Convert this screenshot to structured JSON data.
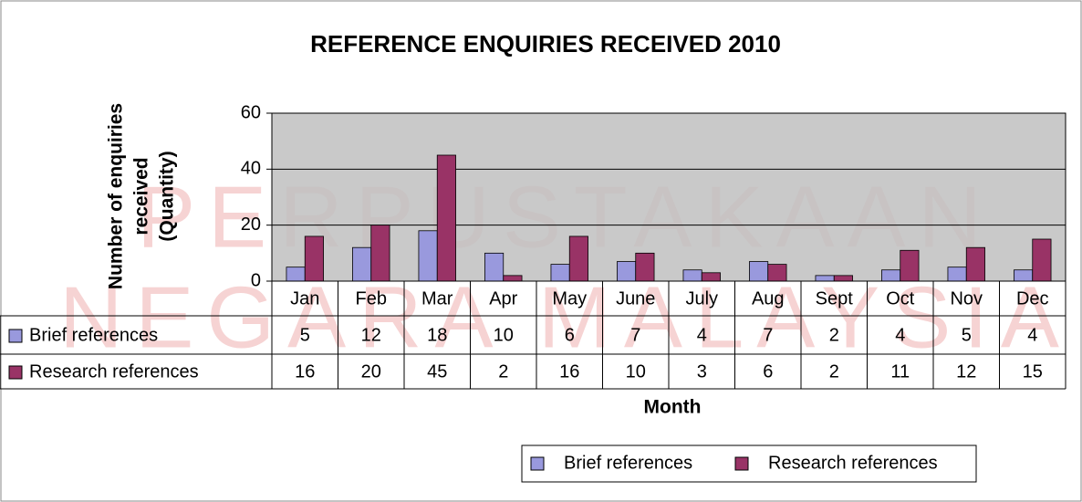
{
  "chart_data": {
    "type": "bar",
    "title": "REFERENCE ENQUIRIES RECEIVED 2010",
    "ylabel": [
      "Number of enquiries",
      "received",
      "(Quantity)"
    ],
    "xlabel": "Month",
    "watermark": [
      "PERPUSTAKAAN",
      "NEGARA MALAYSIA"
    ],
    "categories": [
      "Jan",
      "Feb",
      "Mar",
      "Apr",
      "May",
      "June",
      "July",
      "Aug",
      "Sept",
      "Oct",
      "Nov",
      "Dec"
    ],
    "series": [
      {
        "name": "Brief references",
        "color": "#9999dd",
        "values": [
          5,
          12,
          18,
          10,
          6,
          7,
          4,
          7,
          2,
          4,
          5,
          4
        ]
      },
      {
        "name": "Research references",
        "color": "#993366",
        "values": [
          16,
          20,
          45,
          2,
          16,
          10,
          3,
          6,
          2,
          11,
          12,
          15
        ]
      }
    ],
    "ylim": [
      0,
      60
    ],
    "yticks": [
      0,
      20,
      40,
      60
    ],
    "grid": true,
    "legend": "bottom"
  }
}
